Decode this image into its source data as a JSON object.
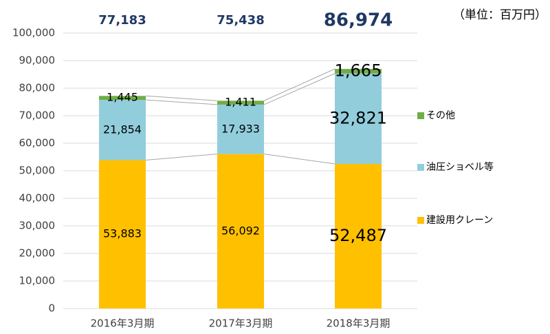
{
  "chart_data": {
    "type": "stacked-bar",
    "unit_label": "（単位：百万円）",
    "categories": [
      "2016年3月期",
      "2017年3月期",
      "2018年3月期"
    ],
    "series": [
      {
        "name": "建設用クレーン",
        "color": "#ffc000",
        "values": [
          53883,
          56092,
          52487
        ],
        "value_labels": [
          "53,883",
          "56,092",
          "52,487"
        ]
      },
      {
        "name": "油圧ショベル等",
        "color": "#92cddc",
        "values": [
          21854,
          17933,
          32821
        ],
        "value_labels": [
          "21,854",
          "17,933",
          "32,821"
        ]
      },
      {
        "name": "その他",
        "color": "#70ad47",
        "values": [
          1445,
          1411,
          1665
        ],
        "value_labels": [
          "1,445",
          "1,411",
          "1,665"
        ]
      }
    ],
    "totals": {
      "values": [
        77183,
        75438,
        86974
      ],
      "value_labels": [
        "77,183",
        "75,438",
        "86,974"
      ]
    },
    "ylim": [
      0,
      100000
    ],
    "yticks": [
      0,
      {
        "value": 10000,
        "label": "10,000"
      },
      {
        "value": 20000,
        "label": "20,000"
      },
      {
        "value": 30000,
        "label": "30,000"
      },
      {
        "value": 40000,
        "label": "40,000"
      },
      {
        "value": 50000,
        "label": "50,000"
      },
      {
        "value": 60000,
        "label": "60,000"
      },
      {
        "value": 70000,
        "label": "70,000"
      },
      {
        "value": 80000,
        "label": "80,000"
      },
      {
        "value": 90000,
        "label": "90,000"
      },
      {
        "value": 100000,
        "label": "100,000"
      }
    ],
    "grid": true
  }
}
